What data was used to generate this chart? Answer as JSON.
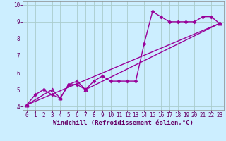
{
  "title": "",
  "xlabel": "Windchill (Refroidissement éolien,°C)",
  "ylabel": "",
  "background_color": "#cceeff",
  "line_color": "#990099",
  "grid_color": "#aacccc",
  "xlim": [
    -0.5,
    23.5
  ],
  "ylim": [
    3.8,
    10.2
  ],
  "xticks": [
    0,
    1,
    2,
    3,
    4,
    5,
    6,
    7,
    8,
    9,
    10,
    11,
    12,
    13,
    14,
    15,
    16,
    17,
    18,
    19,
    20,
    21,
    22,
    23
  ],
  "yticks": [
    4,
    5,
    6,
    7,
    8,
    9,
    10
  ],
  "series1_x": [
    0,
    1,
    2,
    3,
    4,
    5,
    6,
    7,
    8,
    9,
    10,
    11,
    12,
    13,
    14,
    15,
    16,
    17,
    18,
    19,
    20,
    21,
    22,
    23
  ],
  "series1_y": [
    4.1,
    4.7,
    5.0,
    4.7,
    4.5,
    5.3,
    5.3,
    5.0,
    5.5,
    5.8,
    5.5,
    5.5,
    5.5,
    5.5,
    7.7,
    9.6,
    9.3,
    9.0,
    9.0,
    9.0,
    9.0,
    9.3,
    9.3,
    8.9
  ],
  "series2_x": [
    0,
    3,
    4,
    5,
    6,
    7,
    23
  ],
  "series2_y": [
    4.1,
    5.0,
    4.5,
    5.3,
    5.5,
    5.0,
    8.9
  ],
  "series3_x": [
    0,
    23
  ],
  "series3_y": [
    4.1,
    8.9
  ],
  "linewidth": 1.0,
  "xlabel_fontsize": 6.5,
  "tick_fontsize": 5.5,
  "xlabel_color": "#660066",
  "tick_color": "#660066"
}
